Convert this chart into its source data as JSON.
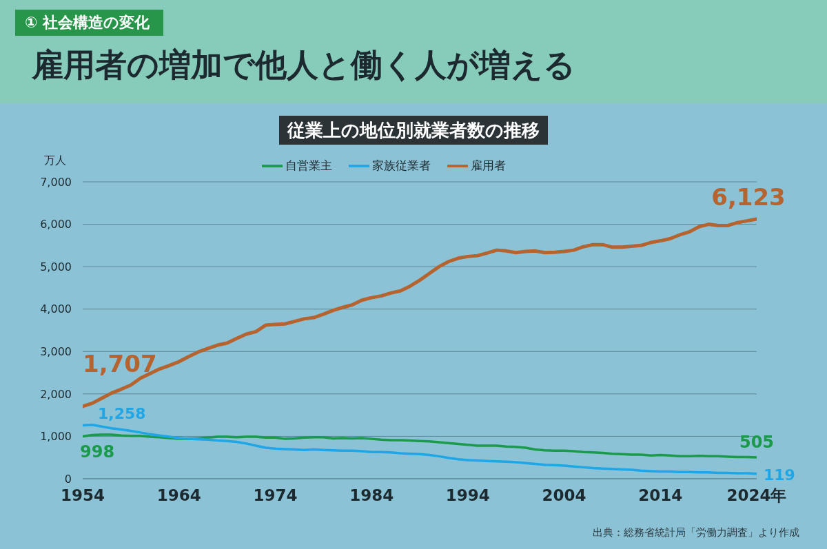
{
  "chart_data": {
    "type": "line",
    "title": "雇用者の増加で他人と働く人が増える",
    "subtitle": "従業上の地位別就業者数の推移",
    "ylabel": "万人",
    "annotations": [
      "① 社会構造の変化",
      "出典：総務省統計局「労働力調査」より作成"
    ],
    "x": [
      1954,
      1955,
      1956,
      1957,
      1958,
      1959,
      1960,
      1961,
      1962,
      1963,
      1964,
      1965,
      1966,
      1967,
      1968,
      1969,
      1970,
      1971,
      1972,
      1973,
      1974,
      1975,
      1976,
      1977,
      1978,
      1979,
      1980,
      1981,
      1982,
      1983,
      1984,
      1985,
      1986,
      1987,
      1988,
      1989,
      1990,
      1991,
      1992,
      1993,
      1994,
      1995,
      1996,
      1997,
      1998,
      1999,
      2000,
      2001,
      2002,
      2003,
      2004,
      2005,
      2006,
      2007,
      2008,
      2009,
      2010,
      2011,
      2012,
      2013,
      2014,
      2015,
      2016,
      2017,
      2018,
      2019,
      2020,
      2021,
      2022,
      2023,
      2024
    ],
    "series": [
      {
        "name": "自営業主",
        "color": "#1a9a4a",
        "values": [
          998,
          1030,
          1040,
          1040,
          1020,
          1010,
          1010,
          990,
          980,
          960,
          940,
          940,
          950,
          970,
          990,
          990,
          980,
          990,
          990,
          970,
          970,
          940,
          950,
          970,
          980,
          980,
          950,
          960,
          950,
          960,
          940,
          920,
          910,
          910,
          900,
          890,
          880,
          860,
          840,
          820,
          800,
          780,
          780,
          780,
          760,
          750,
          730,
          690,
          670,
          660,
          660,
          650,
          630,
          620,
          610,
          590,
          580,
          570,
          570,
          550,
          560,
          550,
          530,
          530,
          540,
          530,
          530,
          520,
          510,
          510,
          505
        ],
        "value_labels": [
          "998",
          null,
          null,
          null,
          null,
          null,
          null,
          null,
          null,
          null,
          null,
          null,
          null,
          null,
          null,
          null,
          null,
          null,
          null,
          null,
          null,
          null,
          null,
          null,
          null,
          null,
          null,
          null,
          null,
          null,
          null,
          null,
          null,
          null,
          null,
          null,
          null,
          null,
          null,
          null,
          null,
          null,
          null,
          null,
          null,
          null,
          null,
          null,
          null,
          null,
          null,
          null,
          null,
          null,
          null,
          null,
          null,
          null,
          null,
          null,
          null,
          null,
          null,
          null,
          null,
          null,
          null,
          null,
          null,
          null,
          "505"
        ]
      },
      {
        "name": "家族従業者",
        "color": "#1ea6e6",
        "values": [
          1258,
          1270,
          1230,
          1190,
          1160,
          1130,
          1090,
          1050,
          1020,
          990,
          960,
          940,
          930,
          920,
          900,
          890,
          870,
          830,
          780,
          730,
          710,
          700,
          690,
          680,
          690,
          680,
          670,
          660,
          660,
          650,
          630,
          630,
          620,
          600,
          590,
          580,
          560,
          530,
          490,
          460,
          440,
          430,
          420,
          410,
          400,
          390,
          370,
          350,
          330,
          320,
          310,
          290,
          270,
          250,
          240,
          230,
          220,
          210,
          190,
          180,
          170,
          170,
          160,
          160,
          150,
          150,
          140,
          140,
          130,
          130,
          119
        ],
        "value_labels": [
          "1,258",
          null,
          null,
          null,
          null,
          null,
          null,
          null,
          null,
          null,
          null,
          null,
          null,
          null,
          null,
          null,
          null,
          null,
          null,
          null,
          null,
          null,
          null,
          null,
          null,
          null,
          null,
          null,
          null,
          null,
          null,
          null,
          null,
          null,
          null,
          null,
          null,
          null,
          null,
          null,
          null,
          null,
          null,
          null,
          null,
          null,
          null,
          null,
          null,
          null,
          null,
          null,
          null,
          null,
          null,
          null,
          null,
          null,
          null,
          null,
          null,
          null,
          null,
          null,
          null,
          null,
          null,
          null,
          null,
          null,
          "119"
        ]
      },
      {
        "name": "雇用者",
        "color": "#b5632f",
        "values": [
          1707,
          1780,
          1900,
          2020,
          2110,
          2210,
          2370,
          2480,
          2590,
          2670,
          2760,
          2880,
          2990,
          3070,
          3150,
          3200,
          3310,
          3410,
          3470,
          3620,
          3640,
          3650,
          3710,
          3770,
          3800,
          3880,
          3970,
          4040,
          4100,
          4210,
          4270,
          4310,
          4380,
          4430,
          4540,
          4680,
          4840,
          5000,
          5120,
          5200,
          5240,
          5260,
          5320,
          5390,
          5370,
          5330,
          5360,
          5370,
          5330,
          5340,
          5360,
          5390,
          5470,
          5520,
          5520,
          5460,
          5460,
          5480,
          5500,
          5570,
          5610,
          5660,
          5750,
          5820,
          5940,
          6000,
          5970,
          5970,
          6040,
          6080,
          6123
        ],
        "value_labels": [
          "1,707",
          null,
          null,
          null,
          null,
          null,
          null,
          null,
          null,
          null,
          null,
          null,
          null,
          null,
          null,
          null,
          null,
          null,
          null,
          null,
          null,
          null,
          null,
          null,
          null,
          null,
          null,
          null,
          null,
          null,
          null,
          null,
          null,
          null,
          null,
          null,
          null,
          null,
          null,
          null,
          null,
          null,
          null,
          null,
          null,
          null,
          null,
          null,
          null,
          null,
          null,
          null,
          null,
          null,
          null,
          null,
          null,
          null,
          null,
          null,
          null,
          null,
          null,
          null,
          null,
          null,
          null,
          null,
          null,
          null,
          "6,123"
        ]
      }
    ],
    "xlim": [
      1954,
      2024
    ],
    "xticks": [
      1954,
      1964,
      1974,
      1984,
      1994,
      2004,
      2014,
      {
        "value": 2024,
        "label": "2024年"
      }
    ],
    "ylim": [
      0,
      7000
    ],
    "yticks": [
      0,
      {
        "value": 1000,
        "label": "1,000"
      },
      {
        "value": 2000,
        "label": "2,000"
      },
      {
        "value": 3000,
        "label": "3,000"
      },
      {
        "value": 4000,
        "label": "4,000"
      },
      {
        "value": 5000,
        "label": "5,000"
      },
      {
        "value": 6000,
        "label": "6,000"
      },
      {
        "value": 7000,
        "label": "7,000"
      }
    ],
    "grid": "y",
    "legend": "top"
  }
}
